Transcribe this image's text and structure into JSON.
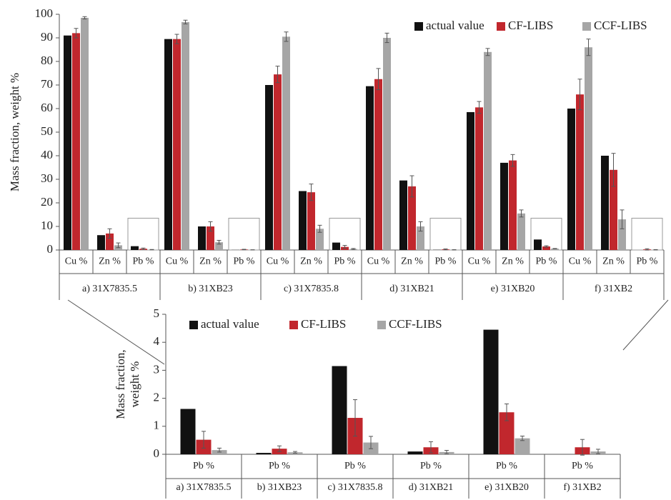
{
  "chart_data": [
    {
      "type": "bar",
      "ylabel": "Mass fraction, weight %",
      "ylim": [
        0,
        100
      ],
      "yticks": [
        0,
        10,
        20,
        30,
        40,
        50,
        60,
        70,
        80,
        90,
        100
      ],
      "categories": [
        "Cu %",
        "Zn %",
        "Pb %",
        "Cu %",
        "Zn %",
        "Pb %",
        "Cu %",
        "Zn %",
        "Pb %",
        "Cu %",
        "Zn %",
        "Pb %",
        "Cu %",
        "Zn %",
        "Pb %",
        "Cu %",
        "Zn %",
        "Pb %"
      ],
      "groups": [
        "a) 31X7835.5",
        "b) 31XB23",
        "c) 31X7835.8",
        "d) 31XB21",
        "e) 31XB20",
        "f) 31XB2"
      ],
      "series": [
        {
          "name": "actual value",
          "color": "#111111",
          "values": [
            91,
            6.3,
            1.62,
            89.5,
            10,
            0.05,
            70,
            25,
            3.15,
            69.5,
            29.5,
            0.1,
            58.5,
            37,
            4.45,
            60,
            40,
            0
          ]
        },
        {
          "name": "CF-LIBS",
          "color": "#c1272d",
          "values": [
            92,
            7,
            0.52,
            89.5,
            10,
            0.2,
            74.5,
            24.5,
            1.3,
            72.5,
            27,
            0.25,
            60.5,
            38,
            1.5,
            66,
            34,
            0.25
          ],
          "errors": [
            2,
            2,
            0.3,
            2,
            2,
            0.1,
            3.5,
            3.5,
            0.65,
            4.5,
            4.5,
            0.2,
            2.5,
            2.5,
            0.3,
            6.5,
            7,
            0.28
          ]
        },
        {
          "name": "CCF-LIBS",
          "color": "#a6a6a6",
          "values": [
            98.5,
            2,
            0.15,
            96.7,
            3.3,
            0.07,
            90.5,
            9,
            0.42,
            90,
            10,
            0.08,
            84,
            15.5,
            0.57,
            86,
            13,
            0.1
          ],
          "errors": [
            0.5,
            1,
            0.07,
            0.8,
            0.8,
            0.03,
            2,
            1.5,
            0.22,
            2,
            2,
            0.06,
            1.5,
            1.5,
            0.08,
            3.5,
            4,
            0.08
          ]
        }
      ]
    },
    {
      "type": "bar",
      "ylabel": [
        "Mass fraction,",
        "weight %"
      ],
      "ylim": [
        0,
        5
      ],
      "yticks": [
        0,
        1,
        2,
        3,
        4,
        5
      ],
      "categories": [
        "Pb %",
        "Pb %",
        "Pb %",
        "Pb %",
        "Pb %",
        "Pb %"
      ],
      "groups": [
        "a) 31X7835.5",
        "b) 31XB23",
        "c) 31X7835.8",
        "d) 31XB21",
        "e) 31XB20",
        "f) 31XB2"
      ],
      "series": [
        {
          "name": "actual value",
          "color": "#111111",
          "values": [
            1.62,
            0.05,
            3.15,
            0.1,
            4.45,
            0
          ]
        },
        {
          "name": "CF-LIBS",
          "color": "#c1272d",
          "values": [
            0.52,
            0.2,
            1.3,
            0.25,
            1.5,
            0.25
          ],
          "errors": [
            0.3,
            0.1,
            0.65,
            0.2,
            0.3,
            0.28
          ]
        },
        {
          "name": "CCF-LIBS",
          "color": "#a6a6a6",
          "values": [
            0.15,
            0.07,
            0.42,
            0.08,
            0.57,
            0.1
          ],
          "errors": [
            0.07,
            0.03,
            0.22,
            0.06,
            0.08,
            0.08
          ]
        }
      ]
    }
  ]
}
